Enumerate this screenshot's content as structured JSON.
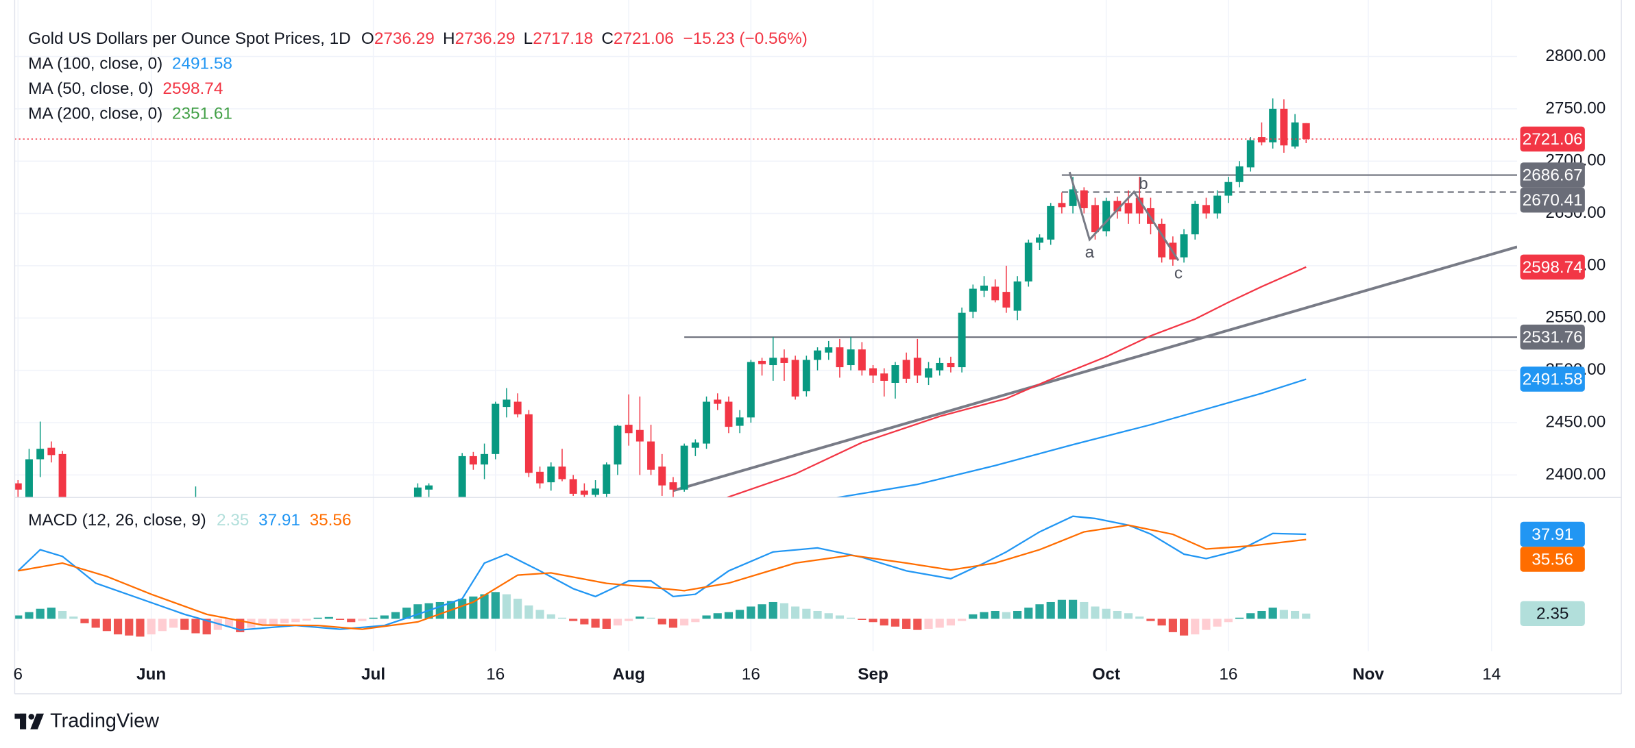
{
  "branding": "TradingView",
  "chart_data": [
    {
      "type": "candlestick",
      "title": "Gold US Dollars per Ounce Spot Prices, 1D",
      "ohlc_labels": [
        "O",
        "H",
        "L",
        "C"
      ],
      "change": "−15.23 (−0.56%)",
      "up_color": "#089981",
      "down_color": "#f23645",
      "x": [
        0,
        1,
        2,
        3,
        4,
        16,
        36,
        37,
        40,
        41,
        42,
        43,
        44,
        45,
        46,
        47,
        48,
        49,
        50,
        51,
        52,
        53,
        54,
        55,
        56,
        57,
        58,
        59,
        60,
        61,
        62,
        63,
        64,
        65,
        66,
        67,
        68,
        69,
        70,
        71,
        72,
        73,
        74,
        75,
        76,
        77,
        78,
        79,
        80,
        81,
        82,
        83,
        84,
        85,
        86,
        87,
        88,
        89,
        90,
        91,
        92,
        93,
        94,
        95,
        96,
        97,
        98,
        99,
        100,
        101,
        102,
        103,
        104,
        105,
        106,
        107,
        108,
        109,
        110,
        111,
        112,
        113,
        114,
        115,
        116
      ],
      "open": [
        2392,
        2372,
        2415,
        2426,
        2420,
        2362,
        2368,
        2386,
        2355,
        2418,
        2410,
        2420,
        2465,
        2470,
        2458,
        2403,
        2393,
        2408,
        2396,
        2385,
        2381,
        2382,
        2410,
        2448,
        2443,
        2432,
        2408,
        2393,
        2386,
        2426,
        2430,
        2472,
        2470,
        2447,
        2455,
        2509,
        2505,
        2512,
        2510,
        2480,
        2510,
        2517,
        2522,
        2505,
        2520,
        2502,
        2497,
        2488,
        2510,
        2512,
        2493,
        2500,
        2507,
        2503,
        2556,
        2576,
        2580,
        2575,
        2557,
        2585,
        2622,
        2625,
        2660,
        2657,
        2672,
        2658,
        2633,
        2662,
        2660,
        2665,
        2655,
        2640,
        2622,
        2608,
        2630,
        2658,
        2650,
        2667,
        2680,
        2694,
        2723,
        2718,
        2750,
        2714,
        2736.29
      ],
      "high": [
        2395,
        2425,
        2451,
        2432,
        2423,
        2389,
        2392,
        2392,
        2421,
        2422,
        2430,
        2470,
        2483,
        2478,
        2462,
        2408,
        2412,
        2425,
        2400,
        2392,
        2395,
        2412,
        2448,
        2477,
        2475,
        2448,
        2420,
        2398,
        2430,
        2434,
        2475,
        2478,
        2475,
        2462,
        2510,
        2512,
        2532,
        2520,
        2514,
        2514,
        2522,
        2528,
        2530,
        2532,
        2527,
        2505,
        2502,
        2508,
        2517,
        2530,
        2508,
        2512,
        2513,
        2560,
        2582,
        2590,
        2587,
        2600,
        2590,
        2625,
        2630,
        2660,
        2670,
        2685,
        2675,
        2665,
        2665,
        2666,
        2672,
        2685,
        2665,
        2645,
        2628,
        2635,
        2662,
        2665,
        2672,
        2685,
        2700,
        2723,
        2737,
        2760,
        2759,
        2745,
        2736.29
      ],
      "low": [
        2375,
        2368,
        2398,
        2412,
        2365,
        2350,
        2362,
        2376,
        2350,
        2405,
        2396,
        2415,
        2455,
        2455,
        2398,
        2387,
        2385,
        2394,
        2380,
        2378,
        2375,
        2378,
        2400,
        2428,
        2400,
        2400,
        2380,
        2375,
        2384,
        2418,
        2425,
        2462,
        2440,
        2440,
        2450,
        2495,
        2490,
        2490,
        2472,
        2475,
        2500,
        2510,
        2493,
        2500,
        2495,
        2488,
        2475,
        2473,
        2488,
        2488,
        2486,
        2495,
        2498,
        2498,
        2550,
        2570,
        2565,
        2555,
        2548,
        2580,
        2615,
        2620,
        2650,
        2650,
        2650,
        2625,
        2628,
        2645,
        2640,
        2640,
        2630,
        2603,
        2600,
        2603,
        2625,
        2645,
        2645,
        2660,
        2675,
        2690,
        2715,
        2712,
        2708,
        2712,
        2717.18
      ],
      "close": [
        2386,
        2415,
        2425,
        2419,
        2372,
        2370,
        2388,
        2390,
        2418,
        2410,
        2420,
        2468,
        2472,
        2458,
        2402,
        2392,
        2408,
        2396,
        2382,
        2381,
        2387,
        2410,
        2447,
        2440,
        2432,
        2405,
        2390,
        2386,
        2428,
        2431,
        2470,
        2468,
        2446,
        2455,
        2508,
        2506,
        2512,
        2507,
        2475,
        2510,
        2519,
        2522,
        2503,
        2520,
        2500,
        2495,
        2490,
        2505,
        2492,
        2495,
        2502,
        2507,
        2503,
        2555,
        2578,
        2581,
        2567,
        2560,
        2585,
        2622,
        2627,
        2657,
        2656,
        2673,
        2655,
        2632,
        2662,
        2652,
        2650,
        2650,
        2640,
        2608,
        2606,
        2630,
        2659,
        2650,
        2667,
        2680,
        2695,
        2720,
        2718,
        2750,
        2715,
        2737,
        2721.06
      ],
      "xlim": [
        -0.3,
        135
      ],
      "ylim": [
        2379,
        2854
      ],
      "yticks": [
        {
          "value": 2400,
          "label": "2400.00"
        },
        {
          "value": 2450,
          "label": "2450.00"
        },
        {
          "value": 2500,
          "label": "2500.00"
        },
        {
          "value": 2550,
          "label": "2550.00"
        },
        {
          "value": 2600,
          "label": "2600.00"
        },
        {
          "value": 2650,
          "label": "2650.00"
        },
        {
          "value": 2700,
          "label": "2700.00"
        },
        {
          "value": 2750,
          "label": "2750.00"
        },
        {
          "value": 2800,
          "label": "2800.00"
        }
      ],
      "grid": true,
      "moving_averages": [
        {
          "name": "MA (100, close, 0)",
          "color": "#2196f3",
          "x": [
            73,
            81,
            88,
            95,
            102,
            107,
            112,
            116
          ],
          "values": [
            2377,
            2391,
            2409,
            2429,
            2448,
            2463,
            2478,
            2491.58
          ]
        },
        {
          "name": "MA (50, close, 0)",
          "color": "#f23645",
          "x": [
            62,
            64,
            70,
            76,
            83,
            89,
            94,
            98,
            102,
            106,
            109,
            112,
            116
          ],
          "values": [
            2370,
            2379,
            2401,
            2431,
            2456,
            2473,
            2496,
            2513,
            2533,
            2549,
            2565,
            2580,
            2598.74
          ]
        },
        {
          "name": "MA (200, close, 0)",
          "color": "#43a047",
          "last": 2351.61
        }
      ],
      "level_color": "#6a6d78",
      "levels": [
        {
          "value": 2686.67,
          "start": 94,
          "style": "solid"
        },
        {
          "value": 2670.41,
          "start": 94,
          "style": "dashed"
        },
        {
          "value": 2531.76,
          "start": 60,
          "style": "solid"
        }
      ],
      "trendline": {
        "x": [
          59,
          135
        ],
        "values": [
          2385,
          2618
        ]
      },
      "wave": {
        "x": [
          94.7,
          96.5,
          100.5,
          104.5
        ],
        "values": [
          2689.5,
          2625,
          2670.6,
          2605
        ],
        "labels": [
          null,
          "a",
          "b",
          "c"
        ]
      }
    },
    {
      "type": "macd",
      "title": "MACD (12, 26, close, 9)",
      "xlim": [
        -0.3,
        135
      ],
      "ylim": [
        -14.5,
        54.2
      ],
      "xticks": [
        {
          "value": 0,
          "label": "6"
        },
        {
          "value": 12,
          "label": "Jun"
        },
        {
          "value": 32,
          "label": "Jul"
        },
        {
          "value": 43,
          "label": "16"
        },
        {
          "value": 55,
          "label": "Aug"
        },
        {
          "value": 66,
          "label": "16"
        },
        {
          "value": 77,
          "label": "Sep"
        },
        {
          "value": 98,
          "label": "Oct"
        },
        {
          "value": 109,
          "label": "16"
        },
        {
          "value": 121.6,
          "label": "Nov"
        },
        {
          "value": 132.7,
          "label": "14"
        }
      ],
      "hist_colors": {
        "rise_pos": "#26a69a",
        "fall_pos": "#b2dfdb",
        "rise_neg": "#ffcdd2",
        "fall_neg": "#ef5350"
      },
      "hist_x": [
        0,
        1,
        2,
        3,
        4,
        5,
        6,
        7,
        8,
        9,
        10,
        11,
        12,
        13,
        14,
        15,
        16,
        17,
        18,
        19,
        20,
        21,
        22,
        23,
        24,
        25,
        26,
        27,
        28,
        29,
        30,
        31,
        32,
        33,
        34,
        35,
        36,
        37,
        38,
        39,
        40,
        41,
        42,
        43,
        44,
        45,
        46,
        47,
        48,
        49,
        50,
        51,
        52,
        53,
        54,
        55,
        56,
        57,
        58,
        59,
        60,
        61,
        62,
        63,
        64,
        65,
        66,
        67,
        68,
        69,
        70,
        71,
        72,
        73,
        74,
        75,
        76,
        77,
        78,
        79,
        80,
        81,
        82,
        83,
        84,
        85,
        86,
        87,
        88,
        89,
        90,
        91,
        92,
        93,
        94,
        95,
        96,
        97,
        98,
        99,
        100,
        101,
        102,
        103,
        104,
        105,
        106,
        107,
        108,
        109,
        110,
        111,
        112,
        113,
        114,
        115,
        116
      ],
      "histogram": [
        1.5,
        3,
        4.5,
        5,
        3.5,
        1,
        -2,
        -4,
        -5.5,
        -7,
        -7.5,
        -8,
        -7,
        -5.5,
        -4,
        -5,
        -6.5,
        -7,
        -5,
        -3.5,
        -6,
        -4,
        -3,
        -2.5,
        -2,
        -1.5,
        -0.8,
        0.5,
        0.8,
        -0.5,
        -1.5,
        -1,
        0.5,
        1.5,
        3,
        5,
        6.5,
        7,
        7.5,
        8,
        9,
        10,
        11,
        12,
        11,
        9,
        6,
        4,
        2,
        0.5,
        -1,
        -2.5,
        -4,
        -4.5,
        -3,
        -1,
        1,
        0.5,
        -2.5,
        -4,
        -3,
        -1.5,
        1.5,
        2.5,
        3,
        4,
        5.5,
        6.5,
        7.5,
        7,
        5.5,
        4.5,
        3.5,
        2.5,
        1.5,
        0.5,
        -0.5,
        -1.5,
        -3,
        -3.5,
        -4.5,
        -5,
        -4.5,
        -4,
        -3,
        -1,
        2,
        3,
        3.5,
        3,
        3.5,
        5,
        6.5,
        7.5,
        8.5,
        8.5,
        7.5,
        5.5,
        4.5,
        3.5,
        2.5,
        1,
        -1,
        -3,
        -6,
        -7.5,
        -7,
        -5,
        -3.5,
        -1.5,
        0.5,
        2.5,
        3.5,
        5,
        4,
        3.5,
        2.35
      ],
      "series": [
        {
          "color": "#2196f3",
          "x": [
            0,
            2,
            4,
            7,
            11,
            15,
            20,
            25,
            29,
            33,
            36,
            40,
            42,
            44,
            47,
            50,
            52,
            55,
            57,
            59,
            61,
            64,
            68,
            72,
            76,
            80,
            84,
            87,
            89,
            92,
            95,
            97,
            100,
            102,
            105,
            107,
            110,
            113,
            116
          ],
          "values": [
            21.5,
            31,
            28,
            16,
            9,
            2,
            -5,
            -3,
            -4.7,
            -3,
            2,
            9,
            25,
            29,
            21.5,
            13.5,
            10,
            17,
            17,
            10,
            11,
            21.5,
            30,
            31.8,
            27.6,
            21.5,
            18,
            25,
            30,
            39,
            46,
            45,
            42,
            38,
            29,
            27,
            30.8,
            38.3,
            37.91
          ]
        },
        {
          "color": "#ff6d00",
          "x": [
            0,
            4,
            8,
            12,
            17,
            22,
            27,
            31,
            36,
            41,
            45,
            48,
            53,
            58,
            60,
            64,
            70,
            75,
            80,
            84,
            88,
            92,
            96,
            100,
            104,
            107,
            111,
            116
          ],
          "values": [
            21.5,
            25,
            19,
            11,
            2,
            -2.8,
            -3,
            -4.7,
            -1.4,
            7.5,
            19.6,
            20.6,
            15.9,
            13.6,
            12.6,
            16,
            25,
            28.5,
            25,
            21.9,
            25,
            31,
            39,
            42,
            37.9,
            31.3,
            32.7,
            35.56
          ]
        }
      ]
    }
  ]
}
